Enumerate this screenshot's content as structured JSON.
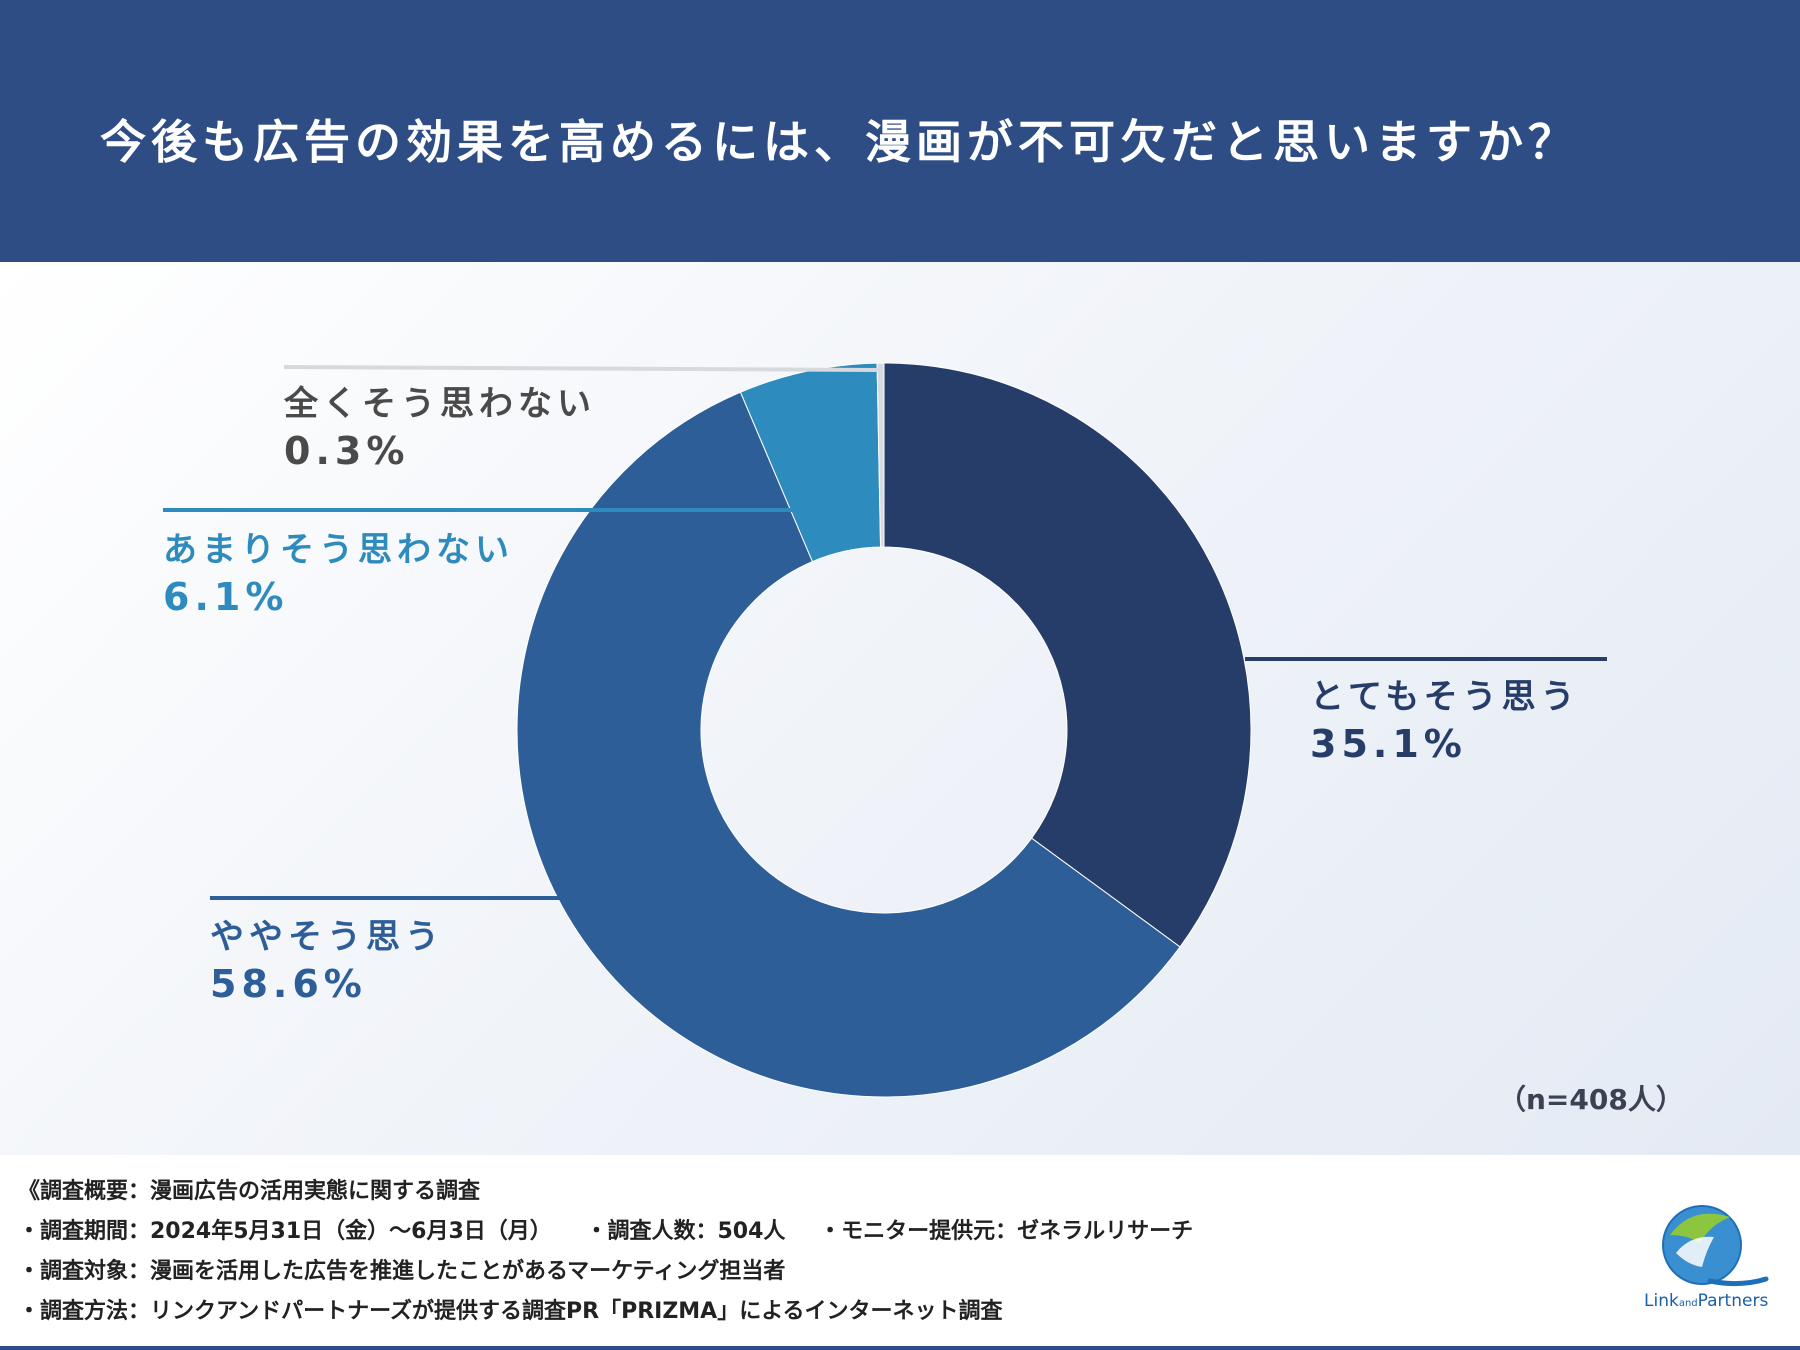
{
  "header": {
    "title": "今後も広告の効果を高めるには、漫画が不可欠だと思いますか？"
  },
  "chart_data": {
    "type": "pie",
    "title": "今後も広告の効果を高めるには、漫画が不可欠だと思いますか？",
    "series": [
      {
        "name": "とてもそう思う",
        "value": 35.1,
        "label": "35.1%",
        "color": "#273d69"
      },
      {
        "name": "ややそう思う",
        "value": 58.6,
        "label": "58.6%",
        "color": "#2e5e98"
      },
      {
        "name": "あまりそう思わない",
        "value": 6.1,
        "label": "6.1%",
        "color": "#2e8bbe"
      },
      {
        "name": "全くそう思わない",
        "value": 0.3,
        "label": "0.3%",
        "color": "#d6d9de"
      }
    ],
    "sample": "（n=408人）"
  },
  "footer": {
    "overview": "《調査概要：漫画広告の活用実態に関する調査",
    "period": "・調査期間：2024年5月31日（金）〜6月3日（月）",
    "count": "・調査人数：504人",
    "provider": "・モニター提供元：ゼネラルリサーチ",
    "target": "・調査対象：漫画を活用した広告を推進したことがあるマーケティング担当者",
    "method": "・調査方法：リンクアンドパートナーズが提供する調査PR「PRIZMA」によるインターネット調査"
  },
  "logo": {
    "text_main_1": "Link",
    "text_small": "and",
    "text_main_2": "Partners"
  },
  "colors": {
    "header_bg": "#2e4d85",
    "dark": "#273d69",
    "mid": "#2e5e98",
    "light": "#2e8bbe",
    "grey": "#4a4a4a"
  }
}
